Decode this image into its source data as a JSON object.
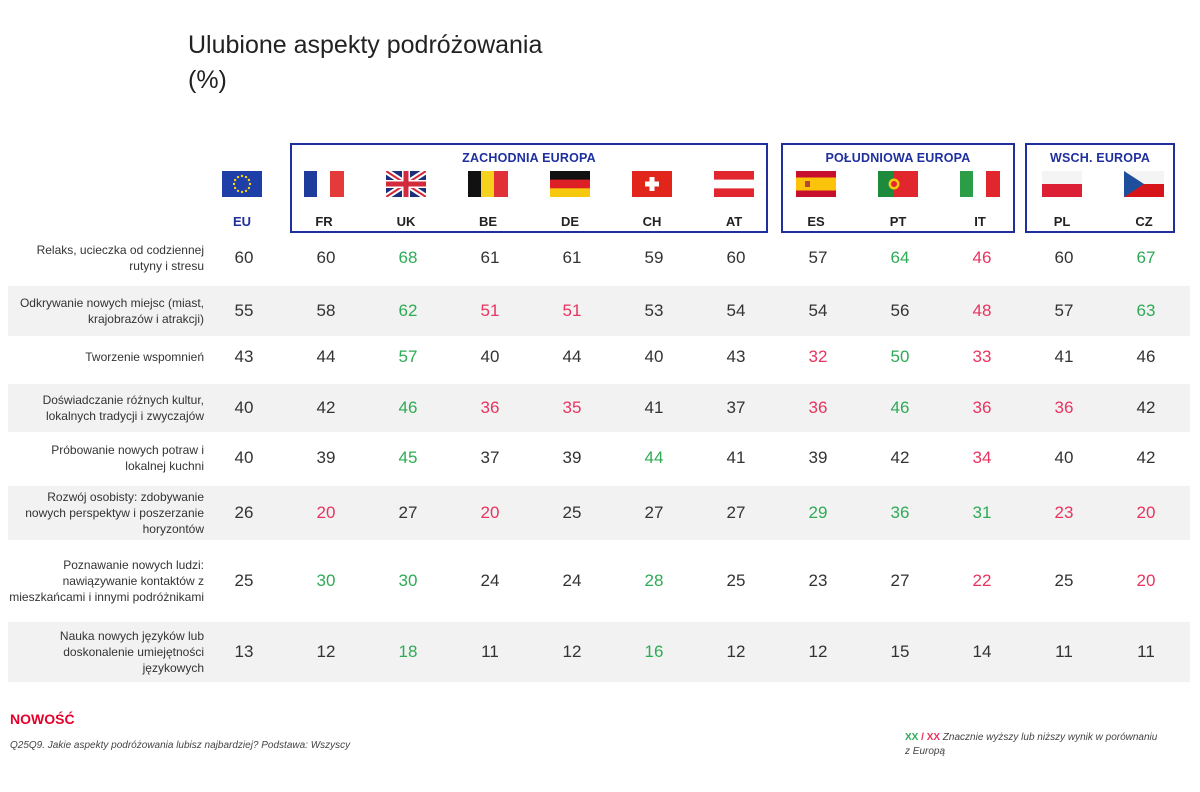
{
  "title": "Ulubione aspekty podróżowania",
  "subtitle": "(%)",
  "groups": [
    {
      "label": "ZACHODNIA EUROPA"
    },
    {
      "label": "POŁUDNIOWA EUROPA"
    },
    {
      "label": "WSCH. EUROPA"
    }
  ],
  "countries": [
    "EU",
    "FR",
    "UK",
    "BE",
    "DE",
    "CH",
    "AT",
    "ES",
    "PT",
    "IT",
    "PL",
    "CZ"
  ],
  "colors": {
    "highlight_up": "#2eab55",
    "highlight_down": "#e8345f",
    "frame": "#1f2f9e",
    "new_label": "#e4002b"
  },
  "chart_data": {
    "type": "table",
    "title": "Ulubione aspekty podróżowania",
    "columns": [
      "EU",
      "FR",
      "UK",
      "BE",
      "DE",
      "CH",
      "AT",
      "ES",
      "PT",
      "IT",
      "PL",
      "CZ"
    ],
    "rows": [
      {
        "label": "Relaks, ucieczka od codziennej rutyny i stresu",
        "values": [
          60,
          60,
          68,
          61,
          61,
          59,
          60,
          57,
          64,
          46,
          60,
          67
        ],
        "flags": [
          "",
          "",
          "up",
          "",
          "",
          "",
          "",
          "",
          "up",
          "down",
          "",
          "up"
        ]
      },
      {
        "label": "Odkrywanie nowych miejsc (miast, krajobrazów i atrakcji)",
        "values": [
          55,
          58,
          62,
          51,
          51,
          53,
          54,
          54,
          56,
          48,
          57,
          63
        ],
        "flags": [
          "",
          "",
          "up",
          "down",
          "down",
          "",
          "",
          "",
          "",
          "down",
          "",
          "up"
        ]
      },
      {
        "label": "Tworzenie wspomnień",
        "values": [
          43,
          44,
          57,
          40,
          44,
          40,
          43,
          32,
          50,
          33,
          41,
          46
        ],
        "flags": [
          "",
          "",
          "up",
          "",
          "",
          "",
          "",
          "down",
          "up",
          "down",
          "",
          ""
        ]
      },
      {
        "label": "Doświadczanie różnych kultur, lokalnych tradycji i zwyczajów",
        "values": [
          40,
          42,
          46,
          36,
          35,
          41,
          37,
          36,
          46,
          36,
          36,
          42
        ],
        "flags": [
          "",
          "",
          "up",
          "down",
          "down",
          "",
          "",
          "down",
          "up",
          "down",
          "down",
          ""
        ]
      },
      {
        "label": "Próbowanie nowych potraw i lokalnej kuchni",
        "values": [
          40,
          39,
          45,
          37,
          39,
          44,
          41,
          39,
          42,
          34,
          40,
          42
        ],
        "flags": [
          "",
          "",
          "up",
          "",
          "",
          "up",
          "",
          "",
          "",
          "down",
          "",
          ""
        ]
      },
      {
        "label": "Rozwój osobisty: zdobywanie nowych perspektyw i poszerzanie horyzontów",
        "values": [
          26,
          20,
          27,
          20,
          25,
          27,
          27,
          29,
          36,
          31,
          23,
          20
        ],
        "flags": [
          "",
          "down",
          "",
          "down",
          "",
          "",
          "",
          "up",
          "up",
          "up",
          "down",
          "down"
        ]
      },
      {
        "label": "Poznawanie nowych ludzi: nawiązywanie kontaktów z mieszkańcami i innymi podróżnikami",
        "values": [
          25,
          30,
          30,
          24,
          24,
          28,
          25,
          23,
          27,
          22,
          25,
          20
        ],
        "flags": [
          "",
          "up",
          "up",
          "",
          "",
          "up",
          "",
          "",
          "",
          "down",
          "",
          "down"
        ]
      },
      {
        "label": "Nauka nowych języków lub doskonalenie umiejętności językowych",
        "values": [
          13,
          12,
          18,
          11,
          12,
          16,
          12,
          12,
          15,
          14,
          11,
          11
        ],
        "flags": [
          "",
          "",
          "up",
          "",
          "",
          "up",
          "",
          "",
          "",
          "",
          "",
          ""
        ]
      }
    ]
  },
  "footer": {
    "new_label": "NOWOŚĆ",
    "question": "Q25Q9. Jakie aspekty podróżowania lubisz najbardziej? Podstawa: Wszyscy",
    "legend_up": "XX",
    "legend_sep": " / ",
    "legend_down": "XX",
    "legend_text": " Znacznie wyższy lub niższy wynik w porównaniu z Europą"
  }
}
